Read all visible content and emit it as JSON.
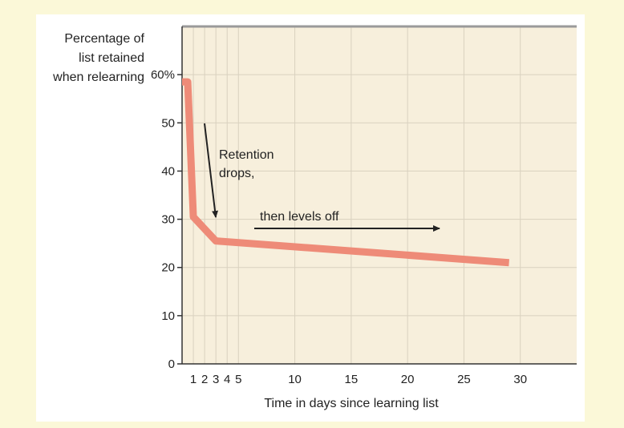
{
  "chart_data": {
    "type": "line",
    "title": "",
    "ylabel_lines": [
      "Percentage of",
      "list retained",
      "when relearning"
    ],
    "xlabel": "Time in days since learning list",
    "x_ticks": [
      1,
      2,
      3,
      4,
      5,
      10,
      15,
      20,
      25,
      30
    ],
    "x_tick_labels": [
      "1",
      "2",
      "3",
      "4",
      "5",
      "10",
      "15",
      "20",
      "25",
      "30"
    ],
    "y_ticks": [
      0,
      10,
      20,
      30,
      40,
      50,
      60
    ],
    "y_tick_labels": [
      "0",
      "10",
      "20",
      "30",
      "40",
      "50",
      "60%"
    ],
    "xlim": [
      0,
      35
    ],
    "ylim": [
      0,
      70
    ],
    "grid": true,
    "series": [
      {
        "x": [
          0,
          0.5,
          1,
          3,
          29
        ],
        "y": [
          58.5,
          58.5,
          30.5,
          25.5,
          21
        ]
      }
    ],
    "annotations": [
      {
        "text_lines": [
          "Retention",
          "drops,"
        ]
      },
      {
        "text_lines": [
          "then levels off"
        ]
      }
    ]
  },
  "colors": {
    "plot_bg": "#f7efdc",
    "grid": "#d9d1bf",
    "line": "#ee8b78",
    "axis": "#333333",
    "top_border": "#9a9a9a"
  }
}
